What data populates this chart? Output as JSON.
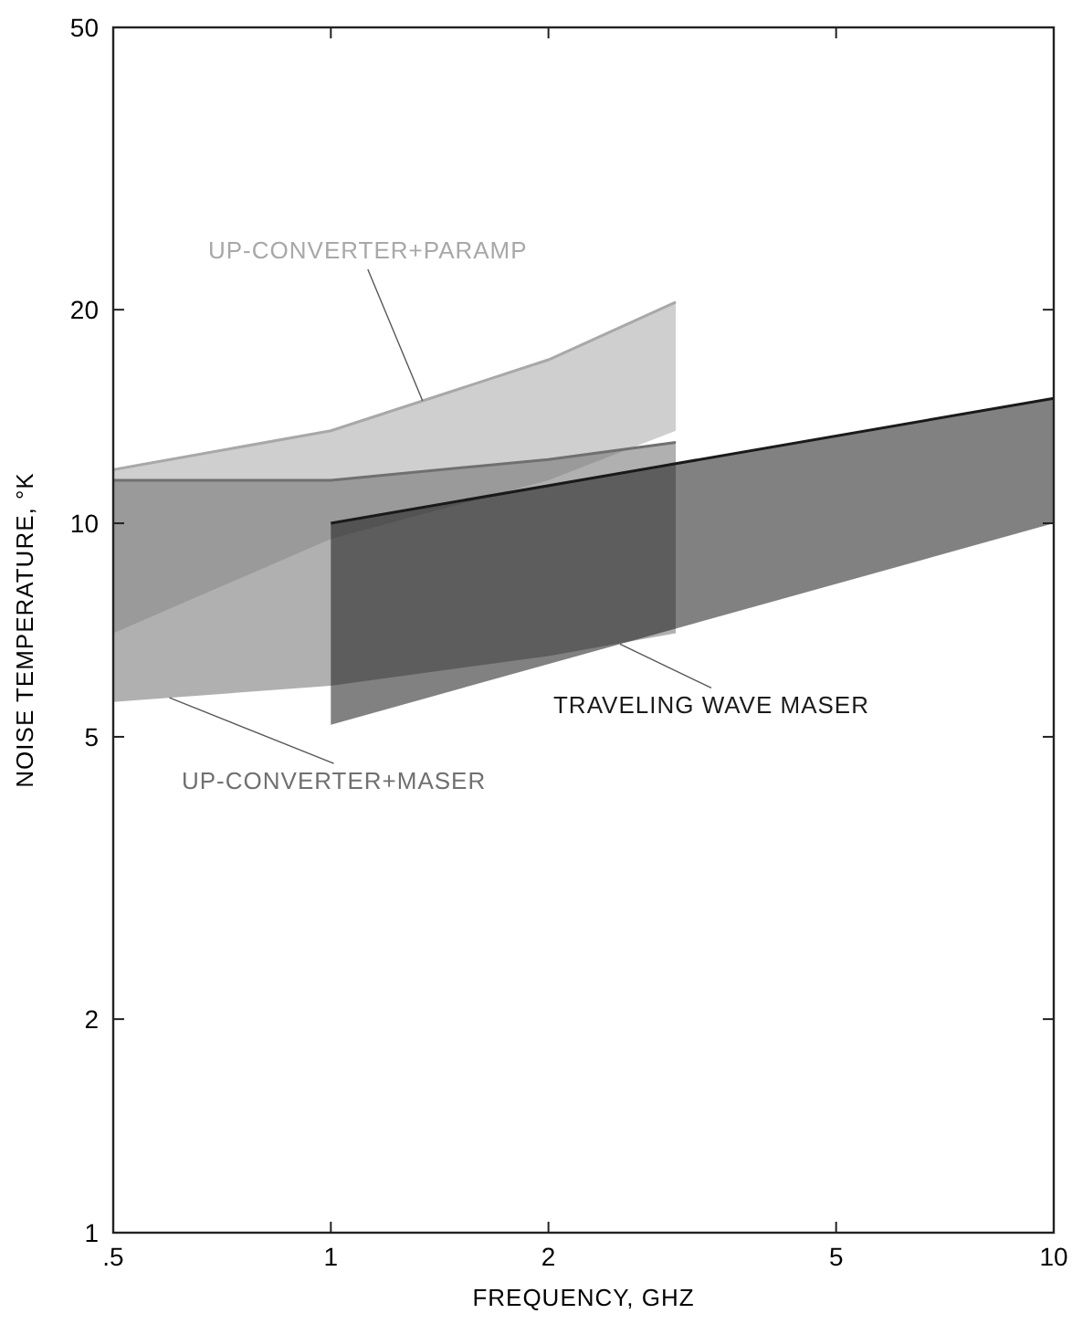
{
  "chart_data": {
    "type": "line",
    "xlabel": "FREQUENCY, GHZ",
    "ylabel": "NOISE TEMPERATURE, °K",
    "log": "xy",
    "grid": false,
    "legend": false,
    "marker": "none",
    "xlim": [
      0.5,
      10
    ],
    "xticks": [
      {
        "value": 0.5,
        "label": ".5"
      },
      1,
      2,
      5,
      10
    ],
    "ylim": [
      1,
      50
    ],
    "yticks": [
      1,
      2,
      5,
      10,
      20,
      50
    ],
    "series": [
      {
        "name": "UP-CONVERTER+PARAMP",
        "color": "#a8a8a8",
        "x": [
          0.5,
          1,
          2,
          3
        ],
        "values": [
          11.9,
          13.5,
          17,
          20.5
        ],
        "upper": [
          11.9,
          13.5,
          17,
          20.5
        ],
        "lower": [
          7,
          9.5,
          11.5,
          13.5
        ]
      },
      {
        "name": "UP-CONVERTER+MASER",
        "color": "#707070",
        "x": [
          0.5,
          1,
          2,
          3
        ],
        "values": [
          11.5,
          11.5,
          12.3,
          13
        ],
        "upper": [
          11.5,
          11.5,
          12.3,
          13
        ],
        "lower": [
          5.6,
          5.9,
          6.5,
          7
        ]
      },
      {
        "name": "TRAVELING WAVE MASER",
        "color": "#1a1a1a",
        "x": [
          1,
          10
        ],
        "values": [
          10,
          15
        ],
        "upper": [
          10,
          15
        ],
        "lower": [
          5.2,
          10
        ]
      }
    ]
  }
}
